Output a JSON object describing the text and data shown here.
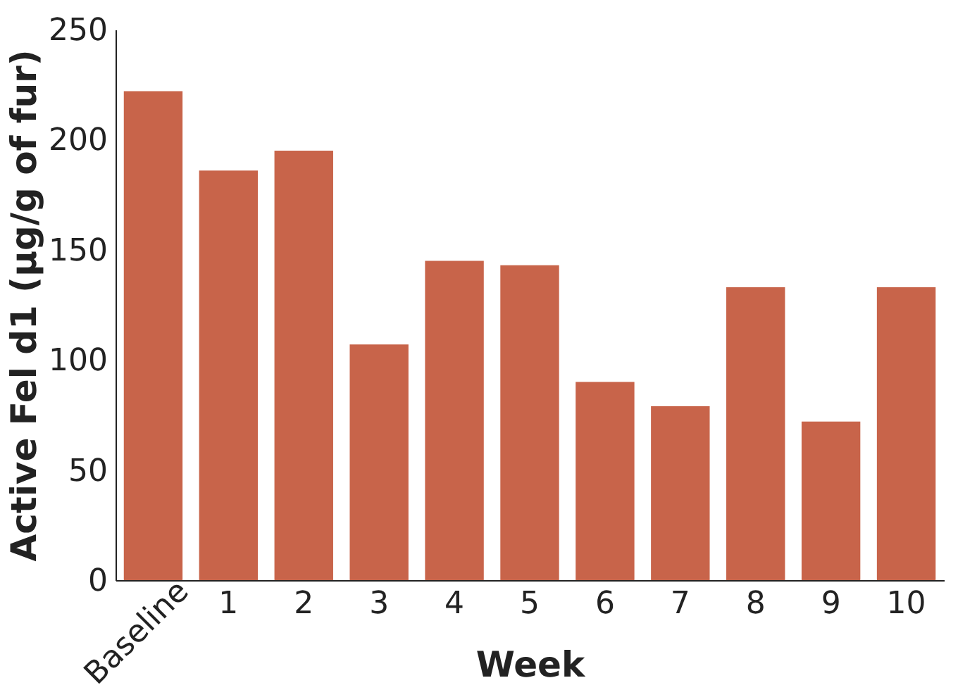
{
  "chart_data": {
    "type": "bar",
    "xlabel": "Week",
    "ylabel": "Active Fel d1 (µg/g of fur)",
    "categories": [
      "Baseline",
      "1",
      "2",
      "3",
      "4",
      "5",
      "6",
      "7",
      "8",
      "9",
      "10"
    ],
    "values": [
      222,
      186,
      195,
      107,
      145,
      143,
      90,
      79,
      133,
      72,
      133
    ],
    "color": "#c8644a",
    "ylim": [
      0,
      250
    ],
    "yticks": [
      0,
      50,
      100,
      150,
      200,
      250
    ],
    "grid": false
  }
}
